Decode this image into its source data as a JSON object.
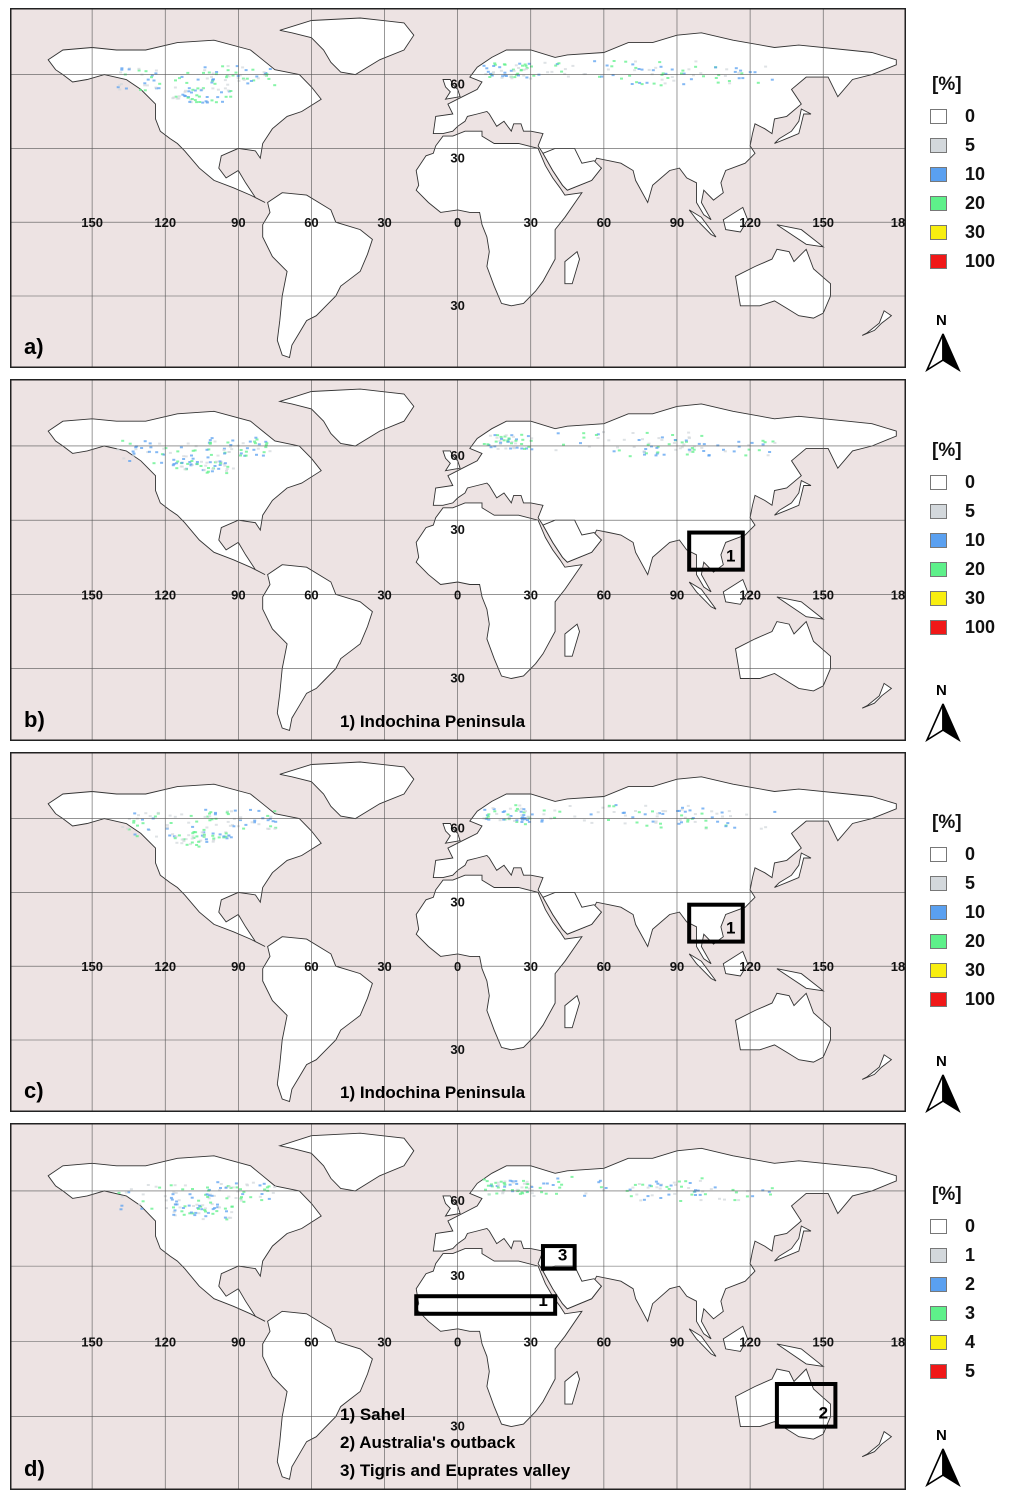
{
  "panels": [
    {
      "label": "a)",
      "legend_title": "[%]",
      "legend": [
        {
          "value": "0",
          "color": "#ffffff"
        },
        {
          "value": "5",
          "color": "#d3d8dc"
        },
        {
          "value": "10",
          "color": "#5aa0f0"
        },
        {
          "value": "20",
          "color": "#5ef08a"
        },
        {
          "value": "30",
          "color": "#f8ee10"
        },
        {
          "value": "100",
          "color": "#f01818"
        }
      ],
      "boxes": [],
      "notes": []
    },
    {
      "label": "b)",
      "legend_title": "[%]",
      "legend": [
        {
          "value": "0",
          "color": "#ffffff"
        },
        {
          "value": "5",
          "color": "#d3d8dc"
        },
        {
          "value": "10",
          "color": "#5aa0f0"
        },
        {
          "value": "20",
          "color": "#5ef08a"
        },
        {
          "value": "30",
          "color": "#f8ee10"
        },
        {
          "value": "100",
          "color": "#f01818"
        }
      ],
      "boxes": [
        {
          "label": "1"
        }
      ],
      "notes": [
        "1) Indochina Peninsula"
      ]
    },
    {
      "label": "c)",
      "legend_title": "[%]",
      "legend": [
        {
          "value": "0",
          "color": "#ffffff"
        },
        {
          "value": "5",
          "color": "#d3d8dc"
        },
        {
          "value": "10",
          "color": "#5aa0f0"
        },
        {
          "value": "20",
          "color": "#5ef08a"
        },
        {
          "value": "30",
          "color": "#f8ee10"
        },
        {
          "value": "100",
          "color": "#f01818"
        }
      ],
      "boxes": [
        {
          "label": "1"
        }
      ],
      "notes": [
        "1) Indochina Peninsula"
      ]
    },
    {
      "label": "d)",
      "legend_title": "[%]",
      "legend": [
        {
          "value": "0",
          "color": "#ffffff"
        },
        {
          "value": "1",
          "color": "#d3d8dc"
        },
        {
          "value": "2",
          "color": "#5aa0f0"
        },
        {
          "value": "3",
          "color": "#5ef08a"
        },
        {
          "value": "4",
          "color": "#f8ee10"
        },
        {
          "value": "5",
          "color": "#f01818"
        }
      ],
      "boxes": [
        {
          "label": "1"
        },
        {
          "label": "2"
        },
        {
          "label": "3"
        }
      ],
      "notes": [
        "1) Sahel",
        "2) Australia's outback",
        "3) Tigris and Euprates valley"
      ]
    }
  ],
  "grid": {
    "lon_labels": [
      "150",
      "120",
      "90",
      "60",
      "30",
      "0",
      "30",
      "60",
      "90",
      "120",
      "150",
      "18"
    ],
    "lat_labels": [
      "60",
      "30",
      "30"
    ]
  },
  "north_arrow": "N",
  "colors": {
    "ocean": "#ede3e3",
    "land": "#ffffff",
    "border": "#333333",
    "frame": "#222222"
  }
}
